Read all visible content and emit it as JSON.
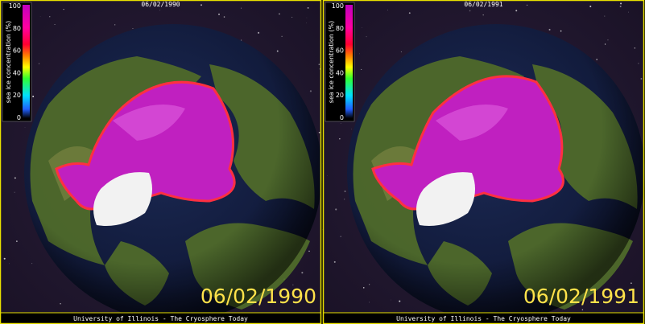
{
  "panels": [
    {
      "header_date": "06/02/1990",
      "big_date": "06/02/1990",
      "footer": "University of Illinois - The Cryosphere Today",
      "colorbar": {
        "label": "sea ice concentration (%)",
        "ticks": [
          0,
          20,
          40,
          60,
          80,
          100
        ]
      }
    },
    {
      "header_date": "06/02/1991",
      "big_date": "06/02/1991",
      "footer": "University of Illinois - The Cryosphere Today",
      "colorbar": {
        "label": "sea ice concentration (%)",
        "ticks": [
          0,
          20,
          40,
          60,
          80,
          100
        ]
      }
    }
  ]
}
